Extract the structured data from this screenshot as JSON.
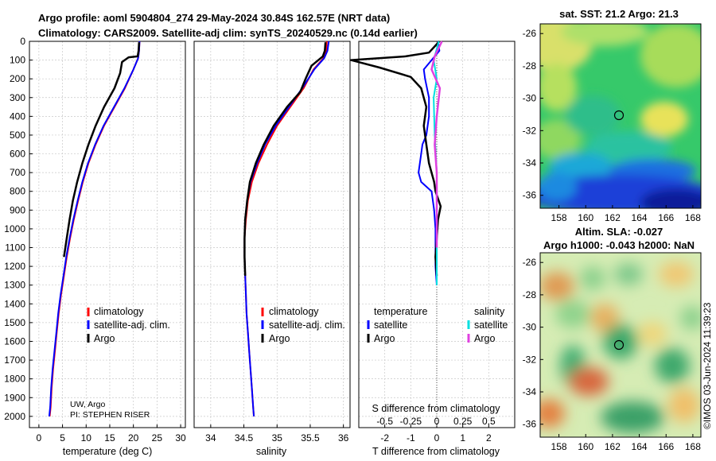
{
  "header": {
    "title_line1": "Argo profile: aoml 5904804_274 29-May-2024 30.84S 162.57E (NRT data)",
    "title_line2": "Climatology: CARS2009. Satellite-adj clim: synTS_20240529.nc (0.14d earlier)"
  },
  "colors": {
    "climatology": "#ff0000",
    "satellite": "#0000ff",
    "argo": "#000000",
    "sat_salinity": "#00e0e0",
    "argo_salinity": "#e040e0"
  },
  "footer": {
    "institution": "UW, Argo",
    "pi": "PI: STEPHEN RISER",
    "stamp": "©IMOS 03-Jun-2024 11:39:23"
  },
  "chart_data": [
    {
      "type": "line",
      "id": "temperature",
      "xlabel": "temperature (deg C)",
      "xlim": [
        -2,
        31
      ],
      "xticks": [
        "0",
        "5",
        "10",
        "15",
        "20",
        "25",
        "30"
      ],
      "xtick_values": [
        0,
        5,
        10,
        15,
        20,
        25,
        30
      ],
      "ylim": [
        0,
        2060
      ],
      "yticks": [
        "0",
        "100",
        "200",
        "300",
        "400",
        "500",
        "600",
        "700",
        "800",
        "900",
        "1000",
        "1100",
        "1200",
        "1300",
        "1400",
        "1500",
        "1600",
        "1700",
        "1800",
        "1900",
        "2000"
      ],
      "ytick_values": [
        0,
        100,
        200,
        300,
        400,
        500,
        600,
        700,
        800,
        900,
        1000,
        1100,
        1200,
        1300,
        1400,
        1500,
        1600,
        1700,
        1800,
        1900,
        2000
      ],
      "legend": [
        "climatology",
        "satellite-adj. clim.",
        "Argo"
      ],
      "series": [
        {
          "name": "climatology",
          "x": [
            21.3,
            21.2,
            21.0,
            20.0,
            18.2,
            16.0,
            13.8,
            12.0,
            10.5,
            9.3,
            8.3,
            7.4,
            6.6,
            5.9,
            5.3,
            4.7,
            4.2,
            3.8,
            3.4,
            3.0,
            2.7,
            2.5,
            2.3
          ],
          "y": [
            0,
            50,
            90,
            150,
            250,
            350,
            450,
            550,
            650,
            750,
            850,
            950,
            1050,
            1150,
            1250,
            1350,
            1450,
            1550,
            1650,
            1750,
            1850,
            1950,
            2000
          ]
        },
        {
          "name": "satellite-adj. clim.",
          "x": [
            21.3,
            21.2,
            21.0,
            20.0,
            18.1,
            15.9,
            13.7,
            11.9,
            10.4,
            9.2,
            8.2,
            7.3,
            6.5,
            5.8,
            5.2,
            4.6,
            4.1,
            3.7,
            3.3,
            2.9,
            2.6,
            2.4,
            2.2
          ],
          "y": [
            0,
            50,
            90,
            150,
            250,
            350,
            450,
            550,
            650,
            750,
            850,
            950,
            1050,
            1150,
            1250,
            1350,
            1450,
            1550,
            1650,
            1750,
            1850,
            1950,
            2000
          ]
        },
        {
          "name": "Argo",
          "x": [
            21.2,
            21.1,
            20.9,
            19.0,
            17.6,
            17.2,
            16.0,
            13.8,
            12.0,
            10.5,
            9.2,
            8.1,
            7.2,
            6.5,
            5.9,
            5.3
          ],
          "y": [
            5,
            50,
            80,
            85,
            110,
            170,
            250,
            350,
            450,
            550,
            650,
            750,
            850,
            950,
            1050,
            1150
          ]
        }
      ]
    },
    {
      "type": "line",
      "id": "salinity",
      "xlabel": "salinity",
      "xlim": [
        33.75,
        36.1
      ],
      "xticks": [
        "34",
        "34.5",
        "35",
        "35.5",
        "36"
      ],
      "xtick_values": [
        34,
        34.5,
        35,
        35.5,
        36
      ],
      "ylim": [
        0,
        2060
      ],
      "series": [
        {
          "name": "climatology",
          "x": [
            35.75,
            35.74,
            35.7,
            35.55,
            35.4,
            35.2,
            35.0,
            34.85,
            34.72,
            34.62,
            34.56,
            34.53,
            34.51,
            34.51,
            34.52,
            34.53,
            34.54,
            34.56,
            34.58,
            34.6,
            34.62,
            34.64,
            34.65
          ],
          "y": [
            0,
            50,
            90,
            150,
            250,
            350,
            450,
            550,
            650,
            750,
            850,
            950,
            1050,
            1150,
            1250,
            1350,
            1450,
            1550,
            1650,
            1750,
            1850,
            1950,
            2000
          ]
        },
        {
          "name": "satellite-adj. clim.",
          "x": [
            35.78,
            35.76,
            35.71,
            35.56,
            35.38,
            35.18,
            34.98,
            34.82,
            34.7,
            34.6,
            34.55,
            34.52,
            34.51,
            34.51,
            34.52,
            34.53,
            34.54,
            34.56,
            34.58,
            34.6,
            34.62,
            34.64,
            34.65
          ],
          "y": [
            0,
            50,
            90,
            150,
            250,
            350,
            450,
            550,
            650,
            750,
            850,
            950,
            1050,
            1150,
            1250,
            1350,
            1450,
            1550,
            1650,
            1750,
            1850,
            1950,
            2000
          ]
        },
        {
          "name": "Argo",
          "x": [
            35.73,
            35.72,
            35.69,
            35.52,
            35.43,
            35.35,
            35.15,
            34.95,
            34.8,
            34.68,
            34.59,
            34.55,
            34.52,
            34.51,
            34.51,
            34.52
          ],
          "y": [
            5,
            50,
            80,
            130,
            200,
            270,
            350,
            450,
            550,
            650,
            750,
            850,
            950,
            1050,
            1150,
            1250
          ]
        }
      ]
    },
    {
      "type": "line",
      "id": "difference",
      "xlabel": "T difference from climatology",
      "xlabel_top": "S difference from climatology",
      "xlim": [
        -3,
        3
      ],
      "xticks": [
        "-2",
        "-1",
        "0",
        "1",
        "2"
      ],
      "xtick_values": [
        -2,
        -1,
        0,
        1,
        2
      ],
      "s_ticks": [
        "-0.5",
        "-0.25",
        "0",
        "0.25",
        "0.5"
      ],
      "s_tick_values": [
        -0.5,
        -0.25,
        0,
        0.25,
        0.5
      ],
      "legend_temperature_title": "temperature",
      "legend_salinity_title": "salinity",
      "legend_temperature": [
        "satellite",
        "Argo"
      ],
      "legend_salinity": [
        "satellite",
        "Argo"
      ],
      "series": [
        {
          "name": "T satellite",
          "x": [
            0.05,
            0.1,
            -0.2,
            -0.5,
            -0.45,
            -0.3,
            -0.3,
            -0.4,
            -0.55,
            -0.6,
            -0.7,
            -0.6,
            -0.2,
            -0.1,
            -0.05,
            -0.05,
            -0.05,
            0.0
          ],
          "y": [
            0,
            50,
            100,
            150,
            200,
            300,
            400,
            500,
            550,
            600,
            700,
            750,
            800,
            900,
            1000,
            1100,
            1200,
            1300
          ]
        },
        {
          "name": "Argo T",
          "x": [
            0.1,
            -0.3,
            -1.2,
            -3.3,
            -2.2,
            -1.0,
            -0.6,
            -0.4,
            -0.5,
            -0.4,
            -0.3,
            -0.1,
            -0.05,
            0.15,
            0.05,
            0.0,
            -0.05,
            0.0
          ],
          "y": [
            0,
            60,
            80,
            100,
            140,
            190,
            250,
            350,
            450,
            550,
            650,
            750,
            800,
            880,
            950,
            1050,
            1150,
            1250
          ]
        },
        {
          "name": "S satellite",
          "x": [
            0.02,
            -0.03,
            0.0,
            -0.03,
            -0.02,
            0.0,
            0.0,
            0.0,
            0.0
          ],
          "y": [
            0,
            100,
            200,
            300,
            500,
            700,
            900,
            1100,
            1300
          ]
        },
        {
          "name": "Argo S",
          "x": [
            0.05,
            -0.02,
            -0.05,
            0.03,
            0.0,
            -0.02,
            0.0,
            0.0,
            0.0
          ],
          "y": [
            0,
            80,
            150,
            250,
            400,
            550,
            700,
            850,
            1100
          ]
        }
      ]
    },
    {
      "type": "heatmap",
      "id": "sst_map",
      "title": "sat. SST: 21.2 Argo: 21.3",
      "xticks": [
        "158",
        "160",
        "162",
        "164",
        "166",
        "168"
      ],
      "yticks": [
        "-26",
        "-28",
        "-30",
        "-32",
        "-34",
        "-36"
      ],
      "xlim": [
        156.6,
        168.6
      ],
      "ylim": [
        -36.8,
        -25.4
      ],
      "marker": {
        "lon": 162.57,
        "lat": -30.84
      }
    },
    {
      "type": "heatmap",
      "id": "sla_map",
      "title_line1": "Altim. SLA: -0.027",
      "title_line2": "Argo h1000: -0.043 h2000: NaN",
      "xticks": [
        "158",
        "160",
        "162",
        "164",
        "166",
        "168"
      ],
      "yticks": [
        "-26",
        "-28",
        "-30",
        "-32",
        "-34",
        "-36"
      ],
      "xlim": [
        156.6,
        168.6
      ],
      "ylim": [
        -36.8,
        -25.4
      ],
      "marker": {
        "lon": 162.57,
        "lat": -30.84
      }
    }
  ]
}
